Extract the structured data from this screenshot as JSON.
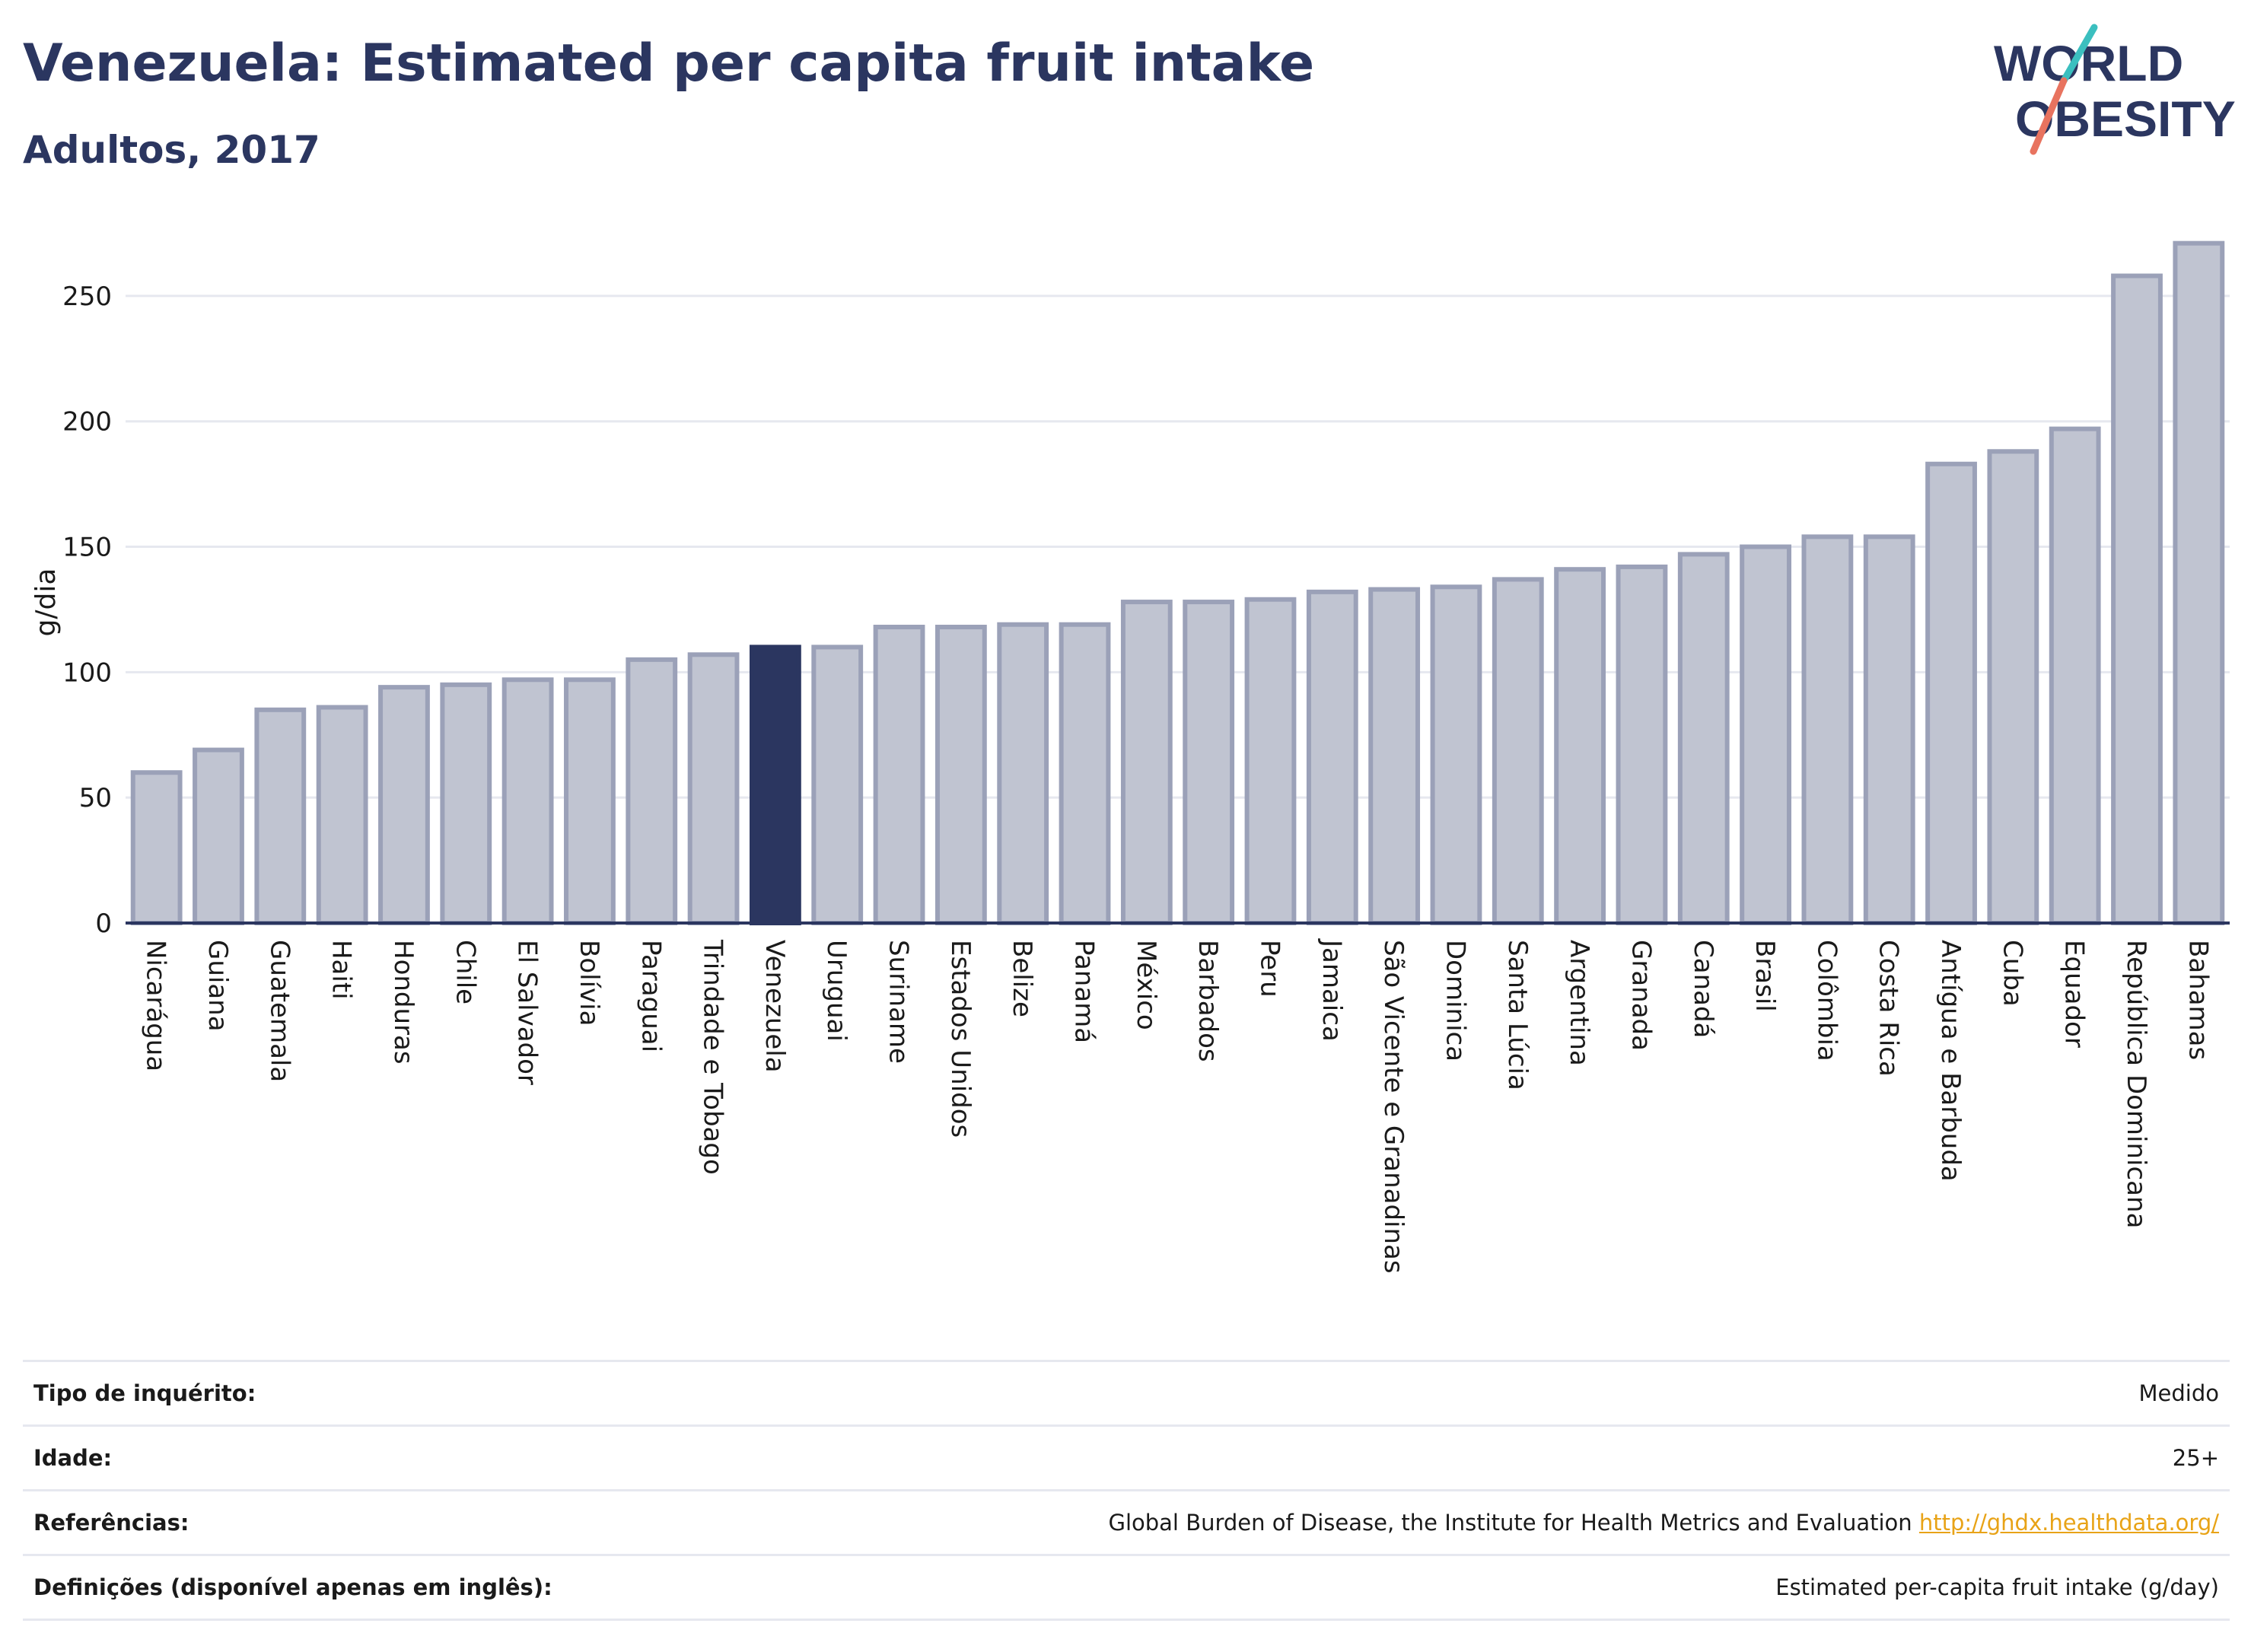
{
  "header": {
    "title": "Venezuela: Estimated per capita fruit intake",
    "subtitle": "Adultos, 2017"
  },
  "logo": {
    "line1": "WORLD",
    "line2": "OBESITY"
  },
  "colors": {
    "highlight": "#2b3660",
    "bar_fill": "#c0c4d1",
    "bar_stroke": "#9ba1b8",
    "grid": "#e6e8ef",
    "axis_text": "#1a1a1a",
    "link": "#e8a317",
    "logo_teal": "#3bbfbf",
    "logo_coral": "#e8735f"
  },
  "chart_data": {
    "type": "bar",
    "ylabel": "g/dia",
    "ylim": [
      0,
      280
    ],
    "yticks": [
      0,
      50,
      100,
      150,
      200,
      250
    ],
    "grid": true,
    "highlight": "Venezuela",
    "categories": [
      "Nicarágua",
      "Guiana",
      "Guatemala",
      "Haiti",
      "Honduras",
      "Chile",
      "El Salvador",
      "Bolívia",
      "Paraguai",
      "Trindade e Tobago",
      "Venezuela",
      "Uruguai",
      "Suriname",
      "Estados Unidos",
      "Belize",
      "Panamá",
      "México",
      "Barbados",
      "Peru",
      "Jamaica",
      "São Vicente e Granadinas",
      "Dominica",
      "Santa Lúcia",
      "Argentina",
      "Granada",
      "Canadá",
      "Brasil",
      "Colômbia",
      "Costa Rica",
      "Antígua e Barbuda",
      "Cuba",
      "Equador",
      "República Dominicana",
      "Bahamas"
    ],
    "values": [
      60,
      69,
      85,
      86,
      94,
      95,
      97,
      97,
      105,
      107,
      110,
      110,
      118,
      118,
      119,
      119,
      128,
      128,
      129,
      132,
      133,
      134,
      137,
      141,
      142,
      147,
      150,
      154,
      154,
      183,
      188,
      197,
      258,
      271
    ]
  },
  "info": [
    {
      "label": "Tipo de inquérito:",
      "value": "Medido",
      "link": ""
    },
    {
      "label": "Idade:",
      "value": "25+",
      "link": ""
    },
    {
      "label": "Referências:",
      "value": "Global Burden of Disease, the Institute for Health Metrics and Evaluation",
      "link": "http://ghdx.healthdata.org/"
    },
    {
      "label": "Definições (disponível apenas em inglês):",
      "value": "Estimated per-capita fruit intake (g/day)",
      "link": ""
    }
  ]
}
